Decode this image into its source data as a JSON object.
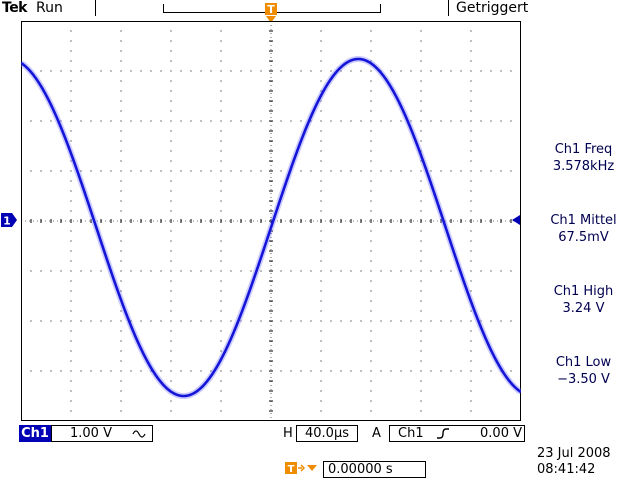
{
  "header": {
    "brand": "Tek",
    "run_state": "Run",
    "trigger_status": "Getriggert"
  },
  "markers": {
    "trigger": "T",
    "channel": "1"
  },
  "measurements": [
    {
      "label": "Ch1 Freq",
      "value": "3.578kHz"
    },
    {
      "label": "Ch1 Mittel",
      "value": "67.5mV"
    },
    {
      "label": "Ch1 High",
      "value": "3.24 V"
    },
    {
      "label": "Ch1 Low",
      "value": "−3.50 V"
    }
  ],
  "readouts": {
    "channel_tag": "Ch1",
    "channel_scale": "1.00 V",
    "coupling_icon": "ac-coupling-icon",
    "horizontal_label": "H",
    "horizontal_scale": "40.0µs",
    "trigger_mode_label": "A",
    "trigger_source": "Ch1",
    "trigger_slope_icon": "rising-edge-icon",
    "trigger_level": "0.00 V",
    "trigger_position": "0.00000 s",
    "date": "23 Jul  2008",
    "time": "08:41:42"
  },
  "colors": {
    "trace": "#1515d8",
    "marker": "#f08c00",
    "channel_tag": "#0000b4",
    "grid": "#000000"
  },
  "waveform": {
    "type": "sine",
    "frequency_khz": 3.578,
    "high_v": 3.24,
    "low_v": -3.5,
    "volts_per_div": 1.0,
    "time_per_div_us": 40.0
  }
}
